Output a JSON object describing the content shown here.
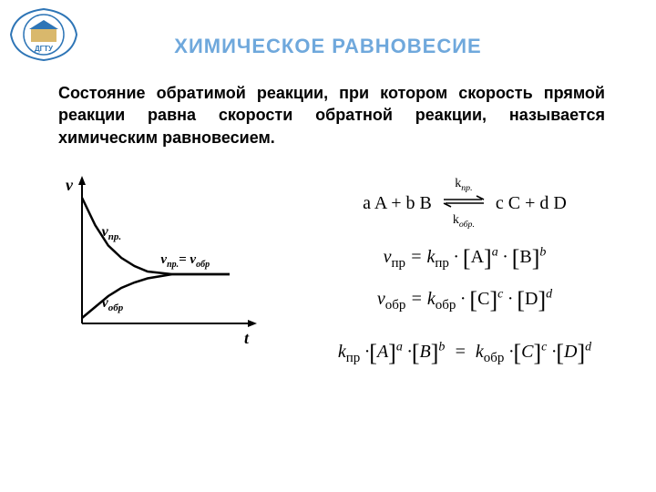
{
  "title": {
    "text": "ХИМИЧЕСКОЕ РАВНОВЕСИЕ",
    "color": "#6fa8dc",
    "fontsize": 22
  },
  "paragraph": {
    "text": "Состояние обратимой реакции, при котором скорость прямой реакции равна скорости обратной реакции, называется химическим равновесием.",
    "fontsize": 18,
    "color": "#000000"
  },
  "logo": {
    "label": "ДГТУ",
    "shape": "rosette-circle",
    "colors": {
      "outer": "#2e75b6",
      "inner": "#ffffff",
      "accent": "#c99a2e"
    }
  },
  "graph": {
    "type": "line",
    "xlabel": "t",
    "ylabel": "v",
    "label_fontstyle": "bold-italic",
    "label_fontsize": 18,
    "labels": {
      "forward": "vпр.",
      "reverse": "vобр",
      "eq": "vпр.= vобр"
    },
    "line_color": "#000000",
    "line_width": 2.5,
    "axis_color": "#000000",
    "axis_width": 2,
    "curves": {
      "forward": {
        "points": [
          [
            0.0,
            0.92
          ],
          [
            0.08,
            0.72
          ],
          [
            0.16,
            0.57
          ],
          [
            0.24,
            0.48
          ],
          [
            0.32,
            0.42
          ],
          [
            0.4,
            0.38
          ],
          [
            0.55,
            0.36
          ],
          [
            0.9,
            0.36
          ]
        ]
      },
      "reverse": {
        "points": [
          [
            0.0,
            0.04
          ],
          [
            0.08,
            0.12
          ],
          [
            0.16,
            0.2
          ],
          [
            0.24,
            0.26
          ],
          [
            0.32,
            0.3
          ],
          [
            0.4,
            0.33
          ],
          [
            0.55,
            0.36
          ],
          [
            0.9,
            0.36
          ]
        ]
      }
    }
  },
  "reaction": {
    "lhs": "a A + b B",
    "rhs": "c C + d D",
    "k_forward": "kпр.",
    "k_reverse": "kобр.",
    "arrow_color": "#000000"
  },
  "rate_fwd": {
    "lhs": "vпр",
    "k": "kпр",
    "terms": [
      {
        "base": "A",
        "exp": "a"
      },
      {
        "base": "B",
        "exp": "b"
      }
    ]
  },
  "rate_rev": {
    "lhs": "vобр",
    "k": "kобр",
    "terms": [
      {
        "base": "C",
        "exp": "c"
      },
      {
        "base": "D",
        "exp": "d"
      }
    ]
  },
  "equilibrium": {
    "lhs_k": "kпр",
    "lhs_terms": [
      {
        "base": "A",
        "exp": "a"
      },
      {
        "base": "B",
        "exp": "b"
      }
    ],
    "rhs_k": "kобр",
    "rhs_terms": [
      {
        "base": "C",
        "exp": "c"
      },
      {
        "base": "D",
        "exp": "d"
      }
    ]
  },
  "equation_style": {
    "font": "Times New Roman",
    "fontsize": 20,
    "color": "#000000",
    "bracket_fontsize": 26
  }
}
